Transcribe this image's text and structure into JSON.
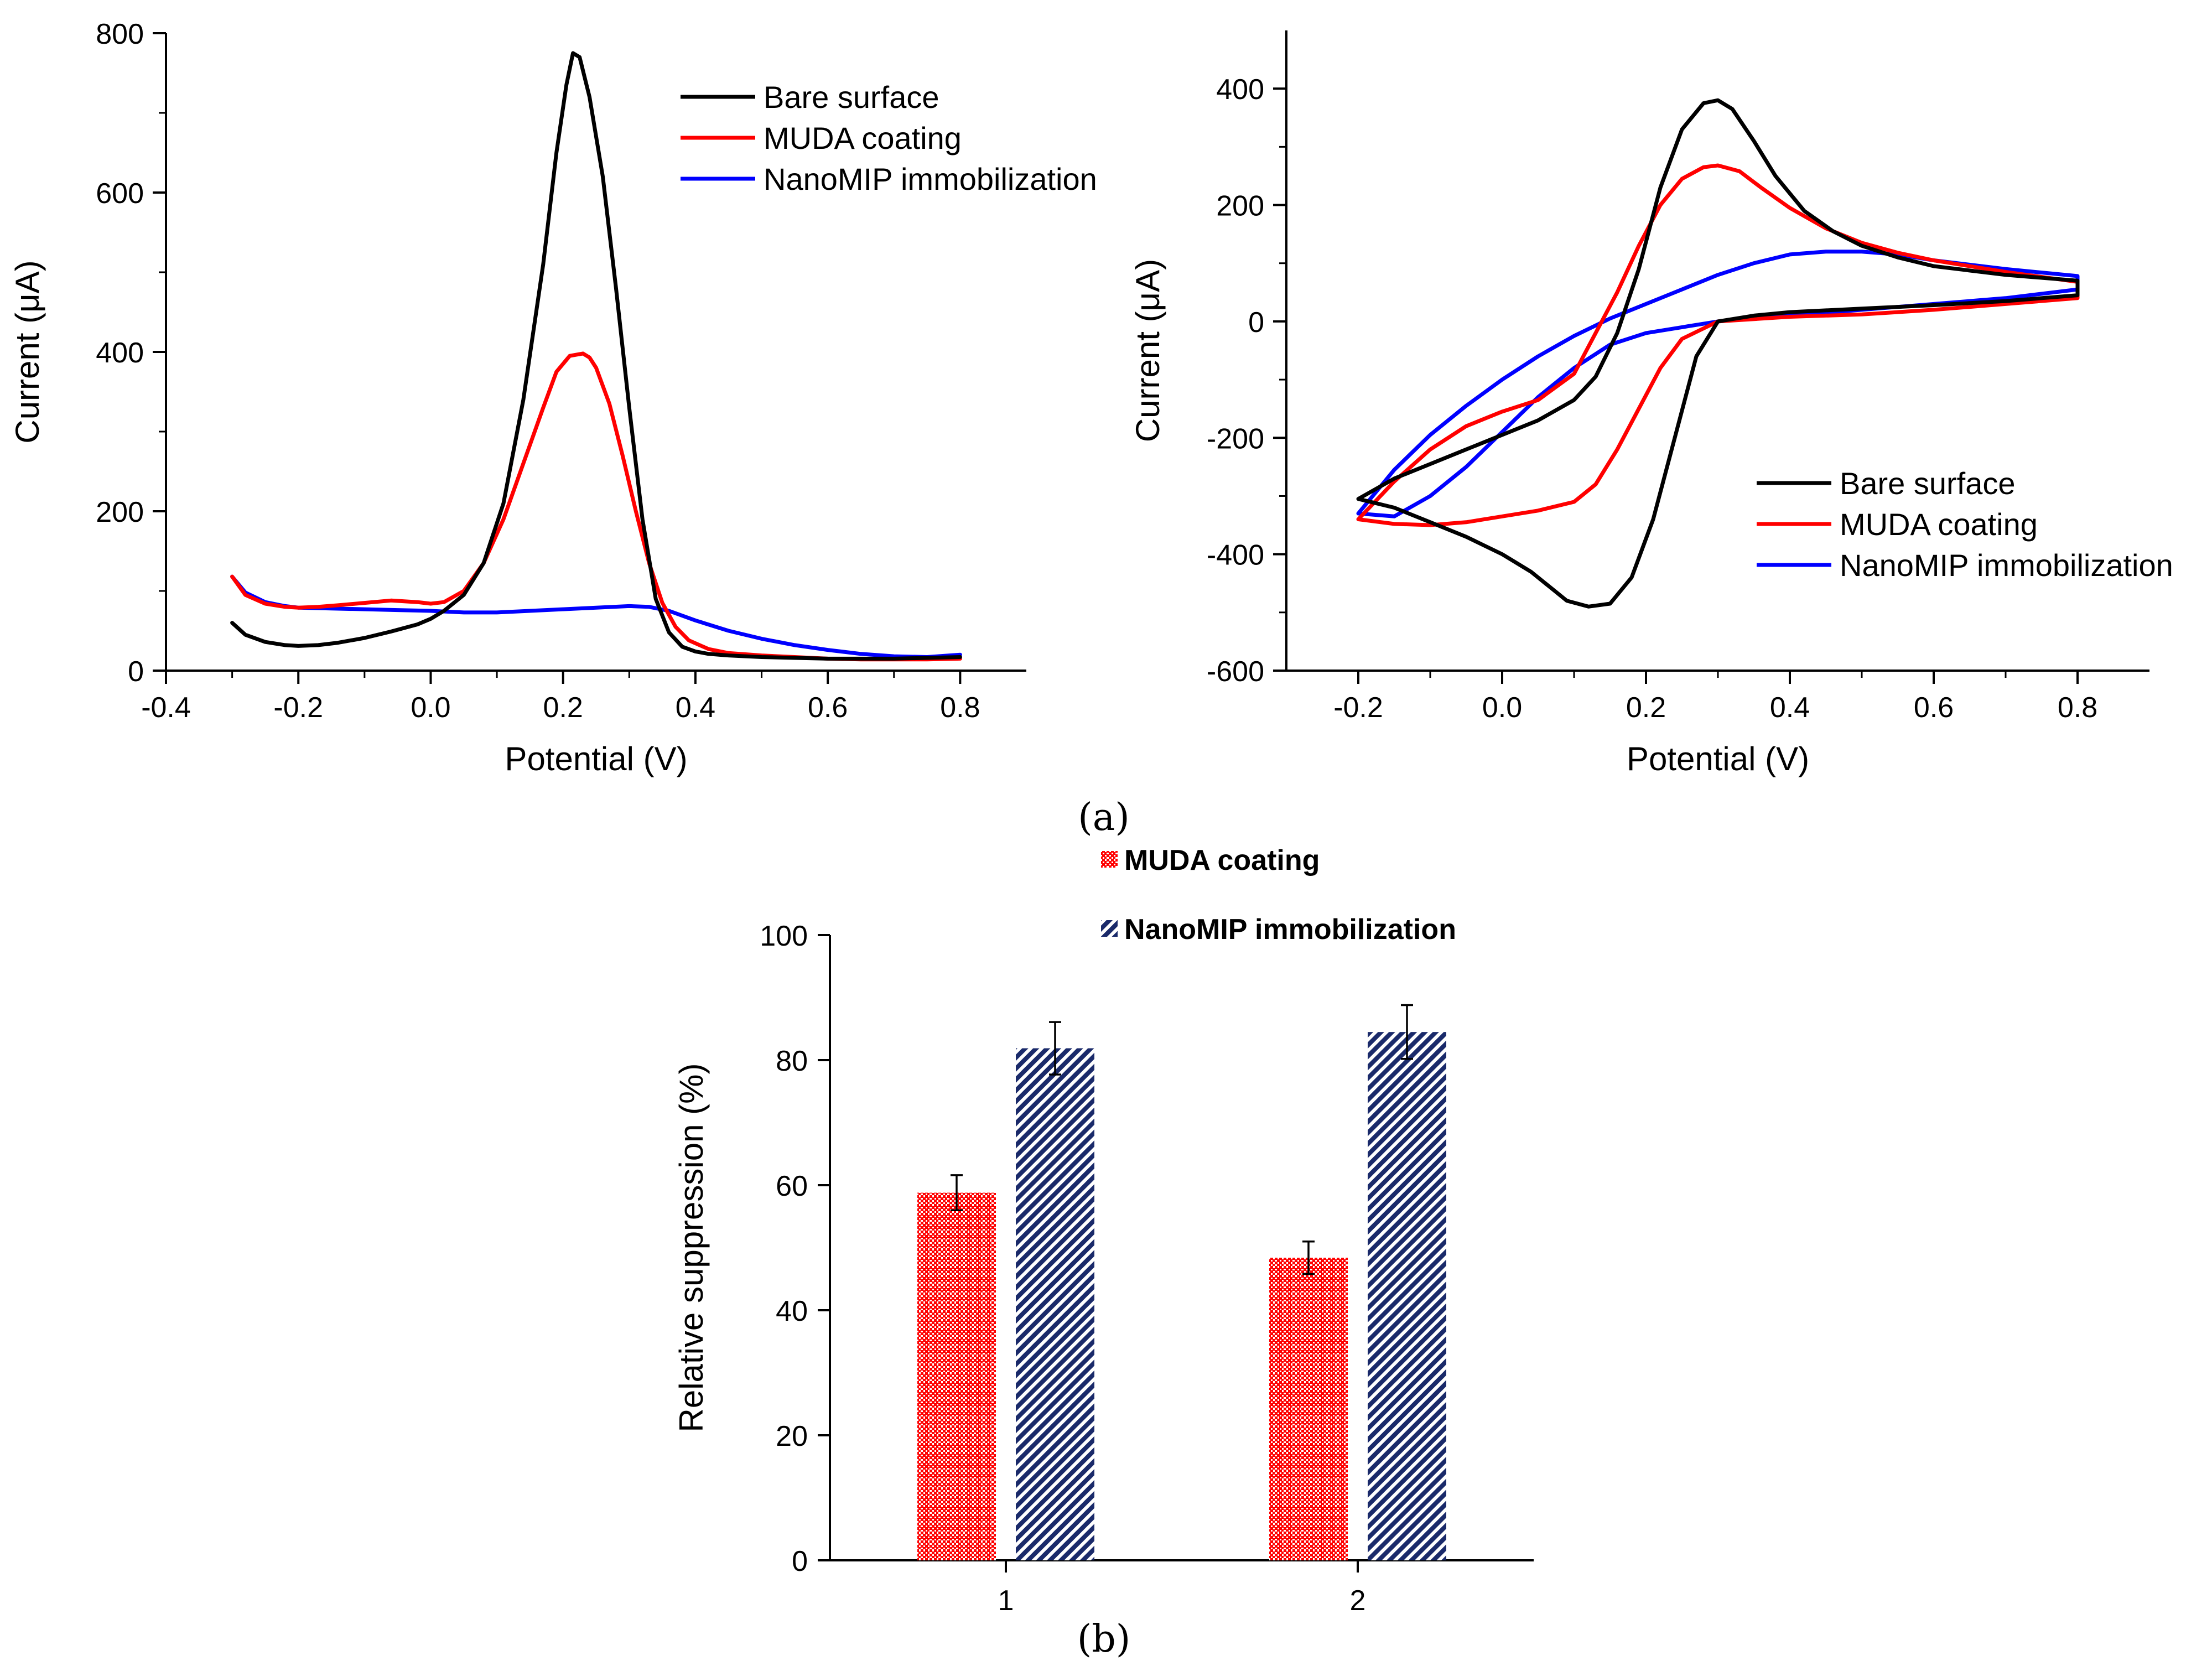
{
  "figure": {
    "panel_a_label": "(a)",
    "panel_b_label": "(b)"
  },
  "colors": {
    "bare": "#000000",
    "muda": "#ff0000",
    "nanomip": "#0000ff",
    "bar_muda": "#ff0000",
    "bar_nanomip": "#1a2a6a"
  },
  "chart_data": [
    {
      "id": "dpv",
      "type": "line",
      "title": "",
      "xlabel": "Potential (V)",
      "ylabel": "Current (μA)",
      "xlim": [
        -0.4,
        0.9
      ],
      "ylim": [
        0,
        800
      ],
      "xticks": [
        -0.4,
        -0.2,
        0.0,
        0.2,
        0.4,
        0.6,
        0.8
      ],
      "xtick_labels": [
        "-0.4",
        "-0.2",
        "0.0",
        "0.2",
        "0.4",
        "0.6",
        "0.8"
      ],
      "yticks": [
        0,
        200,
        400,
        600,
        800
      ],
      "ytick_labels": [
        "0",
        "200",
        "400",
        "600",
        "800"
      ],
      "legend_position": "top-right",
      "series": [
        {
          "name": "Bare surface",
          "color": "#000000",
          "x": [
            -0.3,
            -0.28,
            -0.25,
            -0.22,
            -0.2,
            -0.17,
            -0.14,
            -0.1,
            -0.06,
            -0.02,
            0.0,
            0.02,
            0.05,
            0.08,
            0.11,
            0.14,
            0.17,
            0.19,
            0.205,
            0.215,
            0.225,
            0.24,
            0.26,
            0.28,
            0.3,
            0.32,
            0.34,
            0.36,
            0.38,
            0.4,
            0.42,
            0.45,
            0.5,
            0.55,
            0.6,
            0.65,
            0.7,
            0.75,
            0.8
          ],
          "y": [
            60,
            45,
            36,
            32,
            31,
            32,
            35,
            41,
            49,
            58,
            65,
            75,
            95,
            135,
            210,
            340,
            510,
            650,
            735,
            775,
            770,
            720,
            620,
            480,
            330,
            190,
            90,
            48,
            30,
            24,
            21,
            19,
            17,
            16,
            15,
            15,
            15,
            16,
            17
          ]
        },
        {
          "name": "MUDA coating",
          "color": "#ff0000",
          "x": [
            -0.3,
            -0.28,
            -0.25,
            -0.22,
            -0.2,
            -0.17,
            -0.14,
            -0.1,
            -0.06,
            -0.02,
            0.0,
            0.02,
            0.05,
            0.08,
            0.11,
            0.14,
            0.17,
            0.19,
            0.21,
            0.23,
            0.24,
            0.25,
            0.27,
            0.29,
            0.31,
            0.33,
            0.35,
            0.37,
            0.39,
            0.42,
            0.45,
            0.5,
            0.55,
            0.6,
            0.65,
            0.7,
            0.75,
            0.8
          ],
          "y": [
            118,
            95,
            84,
            80,
            79,
            80,
            82,
            85,
            88,
            86,
            84,
            86,
            100,
            135,
            190,
            260,
            330,
            375,
            395,
            398,
            393,
            380,
            335,
            270,
            200,
            135,
            85,
            55,
            38,
            27,
            22,
            19,
            17,
            15,
            14,
            14,
            14,
            15
          ]
        },
        {
          "name": "NanoMIP immobilization",
          "color": "#0000ff",
          "x": [
            -0.3,
            -0.28,
            -0.25,
            -0.22,
            -0.2,
            -0.15,
            -0.1,
            -0.05,
            0.0,
            0.05,
            0.1,
            0.15,
            0.2,
            0.25,
            0.3,
            0.33,
            0.36,
            0.4,
            0.45,
            0.5,
            0.55,
            0.6,
            0.65,
            0.7,
            0.75,
            0.8
          ],
          "y": [
            118,
            98,
            86,
            81,
            79,
            78,
            77,
            76,
            75,
            73,
            73,
            75,
            77,
            79,
            81,
            80,
            75,
            63,
            50,
            40,
            32,
            26,
            21,
            18,
            17,
            20
          ]
        }
      ]
    },
    {
      "id": "cv",
      "type": "line",
      "title": "",
      "xlabel": "Potential (V)",
      "ylabel": "Current (μA)",
      "xlim": [
        -0.3,
        0.9
      ],
      "ylim": [
        -600,
        500
      ],
      "xticks": [
        -0.2,
        0.0,
        0.2,
        0.4,
        0.6,
        0.8
      ],
      "xtick_labels": [
        "-0.2",
        "0.0",
        "0.2",
        "0.4",
        "0.6",
        "0.8"
      ],
      "yticks": [
        -600,
        -400,
        -200,
        0,
        200,
        400
      ],
      "ytick_labels": [
        "-600",
        "-400",
        "-200",
        "0",
        "200",
        "400"
      ],
      "legend_position": "bottom-right",
      "series": [
        {
          "name": "Bare surface",
          "color": "#000000",
          "x": [
            -0.2,
            -0.15,
            -0.1,
            -0.05,
            0.0,
            0.05,
            0.1,
            0.13,
            0.16,
            0.19,
            0.22,
            0.25,
            0.28,
            0.3,
            0.32,
            0.35,
            0.38,
            0.42,
            0.46,
            0.5,
            0.55,
            0.6,
            0.7,
            0.8,
            0.8,
            0.7,
            0.6,
            0.5,
            0.4,
            0.35,
            0.3,
            0.27,
            0.24,
            0.21,
            0.18,
            0.15,
            0.12,
            0.09,
            0.07,
            0.04,
            0.0,
            -0.05,
            -0.1,
            -0.15,
            -0.2
          ],
          "y": [
            -305,
            -270,
            -245,
            -220,
            -195,
            -170,
            -135,
            -95,
            -20,
            90,
            230,
            330,
            375,
            380,
            365,
            310,
            250,
            190,
            155,
            130,
            110,
            95,
            80,
            70,
            45,
            35,
            28,
            22,
            16,
            10,
            0,
            -60,
            -200,
            -340,
            -440,
            -485,
            -490,
            -480,
            -460,
            -430,
            -400,
            -370,
            -345,
            -320,
            -305
          ]
        },
        {
          "name": "MUDA coating",
          "color": "#ff0000",
          "x": [
            -0.2,
            -0.15,
            -0.1,
            -0.05,
            0.0,
            0.05,
            0.1,
            0.13,
            0.16,
            0.19,
            0.22,
            0.25,
            0.28,
            0.3,
            0.33,
            0.36,
            0.4,
            0.45,
            0.5,
            0.55,
            0.6,
            0.7,
            0.8,
            0.8,
            0.7,
            0.6,
            0.5,
            0.4,
            0.3,
            0.25,
            0.22,
            0.19,
            0.16,
            0.13,
            0.1,
            0.05,
            0.0,
            -0.05,
            -0.1,
            -0.15,
            -0.2
          ],
          "y": [
            -340,
            -275,
            -220,
            -180,
            -155,
            -135,
            -90,
            -20,
            50,
            130,
            200,
            245,
            265,
            268,
            258,
            230,
            195,
            160,
            135,
            118,
            105,
            85,
            68,
            40,
            30,
            20,
            12,
            8,
            0,
            -30,
            -80,
            -150,
            -220,
            -280,
            -310,
            -325,
            -335,
            -345,
            -350,
            -348,
            -340
          ]
        },
        {
          "name": "NanoMIP immobilization",
          "color": "#0000ff",
          "x": [
            -0.2,
            -0.15,
            -0.1,
            -0.05,
            0.0,
            0.05,
            0.1,
            0.15,
            0.2,
            0.25,
            0.3,
            0.35,
            0.4,
            0.45,
            0.5,
            0.55,
            0.6,
            0.7,
            0.8,
            0.8,
            0.7,
            0.6,
            0.5,
            0.4,
            0.3,
            0.25,
            0.2,
            0.15,
            0.1,
            0.05,
            0.0,
            -0.05,
            -0.1,
            -0.15,
            -0.2
          ],
          "y": [
            -330,
            -255,
            -195,
            -145,
            -100,
            -60,
            -25,
            5,
            30,
            55,
            80,
            100,
            115,
            120,
            120,
            115,
            105,
            90,
            78,
            55,
            40,
            30,
            20,
            10,
            0,
            -10,
            -20,
            -40,
            -80,
            -130,
            -190,
            -250,
            -300,
            -335,
            -330
          ]
        }
      ]
    },
    {
      "id": "suppression",
      "type": "bar",
      "title": "",
      "xlabel": "",
      "ylabel": "Relative suppression (%)",
      "ylim": [
        0,
        100
      ],
      "yticks": [
        0,
        20,
        40,
        60,
        80,
        100
      ],
      "ytick_labels": [
        "0",
        "20",
        "40",
        "60",
        "80",
        "100"
      ],
      "categories": [
        "1",
        "2"
      ],
      "legend_position": "top",
      "series": [
        {
          "name": "MUDA coating",
          "color": "#ff0000",
          "pattern": "crosshatch",
          "values": [
            58.8,
            48.4
          ],
          "errors": [
            2.8,
            2.6
          ]
        },
        {
          "name": "NanoMIP immobilization",
          "color": "#1a2a6a",
          "pattern": "diagonal",
          "values": [
            81.9,
            84.5
          ],
          "errors": [
            4.2,
            4.3
          ]
        }
      ]
    }
  ]
}
